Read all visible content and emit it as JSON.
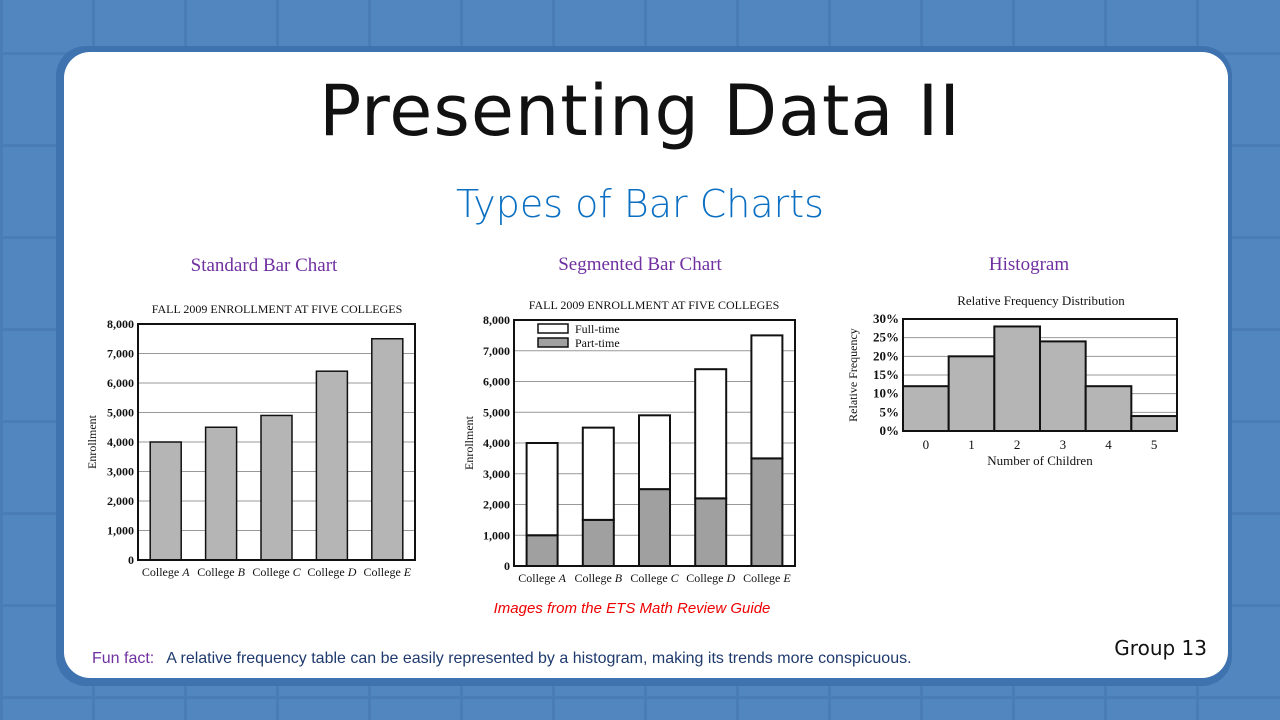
{
  "slide": {
    "title": "Presenting Data II",
    "subtitle": "Types of Bar Charts",
    "labels": [
      "Standard  Bar Chart",
      "Segmented  Bar Chart",
      "Histogram"
    ],
    "source": "Images from the ETS Math Review Guide",
    "fun_fact_label": "Fun fact:",
    "fun_fact_text": "A relative frequency table can be easily represented by a histogram, making its trends more conspicuous.",
    "group": "Group 13"
  },
  "chart_data": [
    {
      "type": "bar",
      "title": "FALL 2009 ENROLLMENT AT FIVE COLLEGES",
      "xlabel": "",
      "ylabel": "Enrollment",
      "categories": [
        "College A",
        "College B",
        "College C",
        "College D",
        "College E"
      ],
      "values": [
        4000,
        4500,
        4900,
        6400,
        7500
      ],
      "ylim": [
        0,
        8000
      ],
      "yticks": [
        "0",
        "1,000",
        "2,000",
        "3,000",
        "4,000",
        "5,000",
        "6,000",
        "7,000",
        "8,000"
      ],
      "grid": true
    },
    {
      "type": "bar",
      "stacked": true,
      "title": "FALL 2009 ENROLLMENT AT FIVE COLLEGES",
      "xlabel": "",
      "ylabel": "Enrollment",
      "categories": [
        "College A",
        "College B",
        "College C",
        "College D",
        "College E"
      ],
      "series": [
        {
          "name": "Part-time",
          "values": [
            1000,
            1500,
            2500,
            2200,
            3500
          ],
          "color": "#a0a0a0"
        },
        {
          "name": "Full-time",
          "values": [
            3000,
            3000,
            2400,
            4200,
            4000
          ],
          "color": "#ffffff"
        }
      ],
      "ylim": [
        0,
        8000
      ],
      "yticks": [
        "0",
        "1,000",
        "2,000",
        "3,000",
        "4,000",
        "5,000",
        "6,000",
        "7,000",
        "8,000"
      ],
      "legend": "top-left",
      "legend_order": [
        "Full-time",
        "Part-time"
      ],
      "grid": true
    },
    {
      "type": "bar",
      "histogram": true,
      "title": "Relative Frequency Distribution",
      "xlabel": "Number of Children",
      "ylabel": "Relative Frequency",
      "categories": [
        "0",
        "1",
        "2",
        "3",
        "4",
        "5"
      ],
      "values": [
        12,
        20,
        28,
        24,
        12,
        4
      ],
      "ylim": [
        0,
        30
      ],
      "yticks": [
        "0%",
        "5%",
        "10%",
        "15%",
        "20%",
        "25%",
        "30%"
      ],
      "grid": true
    }
  ]
}
